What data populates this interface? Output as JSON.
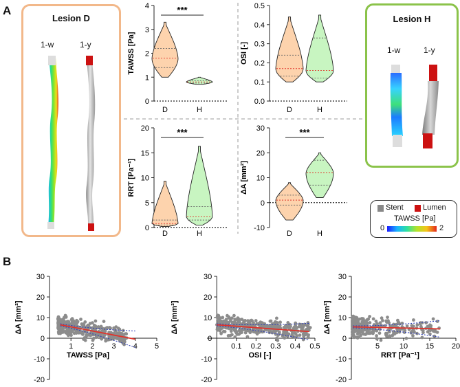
{
  "panels": {
    "a_label": "A",
    "b_label": "B"
  },
  "lesion_d": {
    "title": "Lesion D",
    "left_label": "1-w",
    "right_label": "1-y",
    "border_color": "#f2b88a"
  },
  "lesion_h": {
    "title": "Lesion H",
    "left_label": "1-w",
    "right_label": "1-y",
    "border_color": "#8bc34a"
  },
  "legend": {
    "stent": "Stent",
    "lumen": "Lumen",
    "colorbar_title": "TAWSS [Pa]",
    "colorbar_min": "0",
    "colorbar_max": "2",
    "stent_color": "#888888",
    "lumen_color": "#cc1111"
  },
  "chart_data": [
    {
      "id": "violin-tawss",
      "type": "violin",
      "ylabel": "TAWSS [Pa]",
      "categories": [
        "D",
        "H"
      ],
      "yticks": [
        "0",
        "1",
        "2",
        "3",
        "4"
      ],
      "ylim": [
        0,
        4
      ],
      "significance": "***",
      "series": [
        {
          "name": "D",
          "min": 1.0,
          "q1": 1.4,
          "median": 1.8,
          "q3": 2.2,
          "max": 3.3,
          "color": "#fdd3ad"
        },
        {
          "name": "H",
          "min": 0.7,
          "q1": 0.75,
          "median": 0.8,
          "q3": 0.85,
          "max": 1.0,
          "color": "#c8f5c1"
        }
      ]
    },
    {
      "id": "violin-osi",
      "type": "violin",
      "ylabel": "OSI [-]",
      "categories": [
        "D",
        "H"
      ],
      "yticks": [
        "0.0",
        "0.1",
        "0.2",
        "0.3",
        "0.4",
        "0.5"
      ],
      "ylim": [
        0,
        0.5
      ],
      "significance": "",
      "series": [
        {
          "name": "D",
          "min": 0.1,
          "q1": 0.13,
          "median": 0.17,
          "q3": 0.24,
          "max": 0.44,
          "color": "#fdd3ad"
        },
        {
          "name": "H",
          "min": 0.1,
          "q1": 0.12,
          "median": 0.16,
          "q3": 0.33,
          "max": 0.45,
          "color": "#c8f5c1"
        }
      ]
    },
    {
      "id": "violin-rrt",
      "type": "violin",
      "ylabel": "RRT [Pa⁻¹]",
      "categories": [
        "D",
        "H"
      ],
      "yticks": [
        "0",
        "5",
        "10",
        "15",
        "20"
      ],
      "ylim": [
        0,
        20
      ],
      "significance": "***",
      "series": [
        {
          "name": "D",
          "min": 0.2,
          "q1": 0.5,
          "median": 0.8,
          "q3": 1.5,
          "max": 9.3,
          "color": "#fdd3ad"
        },
        {
          "name": "H",
          "min": 0.5,
          "q1": 1.5,
          "median": 2.2,
          "q3": 4.2,
          "max": 16.3,
          "color": "#c8f5c1"
        }
      ]
    },
    {
      "id": "violin-da",
      "type": "violin",
      "ylabel": "ΔA [mm²]",
      "categories": [
        "D",
        "H"
      ],
      "yticks": [
        "-10",
        "0",
        "10",
        "20",
        "30"
      ],
      "ylim": [
        -10,
        30
      ],
      "significance": "***",
      "series": [
        {
          "name": "D",
          "min": -7,
          "q1": -1,
          "median": 1,
          "q3": 3,
          "max": 8,
          "color": "#fdd3ad"
        },
        {
          "name": "H",
          "min": 2,
          "q1": 7,
          "median": 12,
          "q3": 17,
          "max": 20,
          "color": "#c8f5c1"
        }
      ]
    },
    {
      "id": "scatter-tawss",
      "type": "scatter",
      "ylabel": "ΔA [mm²]",
      "xlabel": "TAWSS [Pa]",
      "xlim": [
        0,
        5
      ],
      "ylim": [
        -20,
        30
      ],
      "xticks": [
        "1",
        "2",
        "3",
        "4",
        "5"
      ],
      "yticks": [
        "-20",
        "-10",
        "0",
        "10",
        "20",
        "30"
      ],
      "fit": {
        "x": [
          0.5,
          4.0
        ],
        "y": [
          6.5,
          -0.5
        ]
      },
      "cluster": {
        "xmin": 0.4,
        "xmax": 3.6
      }
    },
    {
      "id": "scatter-osi",
      "type": "scatter",
      "ylabel": "ΔA [mm²]",
      "xlabel": "OSI [-]",
      "xlim": [
        -0.05,
        0.5
      ],
      "ylim": [
        -20,
        30
      ],
      "xticks": [
        "0.1",
        "0.2",
        "0.3",
        "0.4",
        "0.5"
      ],
      "yticks": [
        "-20",
        "-10",
        "0",
        "10",
        "20",
        "30"
      ],
      "fit": {
        "x": [
          0.0,
          0.47
        ],
        "y": [
          6.5,
          3.2
        ]
      },
      "cluster": {
        "xmin": 0.0,
        "xmax": 0.48
      }
    },
    {
      "id": "scatter-rrt",
      "type": "scatter",
      "ylabel": "ΔA [mm²]",
      "xlabel": "RRT [Pa⁻¹]",
      "xlim": [
        0,
        20
      ],
      "ylim": [
        -20,
        30
      ],
      "xticks": [
        "5",
        "10",
        "15",
        "20"
      ],
      "yticks": [
        "-20",
        "-10",
        "0",
        "10",
        "20",
        "30"
      ],
      "fit": {
        "x": [
          0.3,
          17.0
        ],
        "y": [
          5.5,
          4.5
        ]
      },
      "cluster": {
        "xmin": 0.2,
        "xmax": 17.0
      }
    }
  ]
}
